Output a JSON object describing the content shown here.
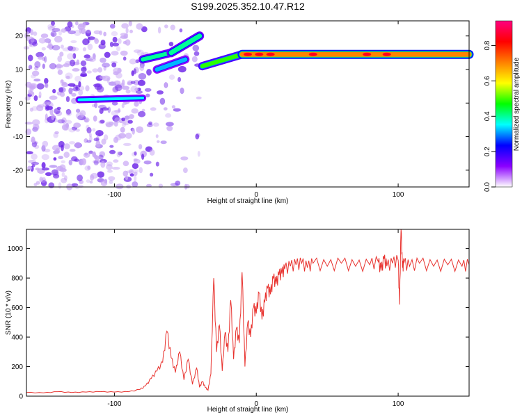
{
  "figure": {
    "title": "S199.2025.352.10.47.R12"
  },
  "chart_data": [
    {
      "type": "heatmap",
      "panel": "top",
      "xlabel": "Height of straight line (km)",
      "ylabel": "Frequency (Hz)",
      "xlim": [
        -162,
        150
      ],
      "ylim": [
        -25,
        24.5
      ],
      "xticks": [
        -100,
        0,
        100
      ],
      "yticks": [
        -20,
        -10,
        0,
        10,
        20
      ],
      "colorbar": {
        "label": "Normalized spectral amplitude",
        "range": [
          0,
          0.94
        ],
        "ticks": [
          0.0,
          0.2,
          0.4,
          0.6,
          0.8
        ],
        "colormap": [
          "#ffffff",
          "#8b00ff",
          "#0000ff",
          "#00ffff",
          "#00ff00",
          "#ffff00",
          "#ff8000",
          "#ff0000",
          "#ff0080"
        ]
      },
      "features": [
        {
          "name": "low-frequency band",
          "x": [
            -125,
            -80
          ],
          "freq_hz": 1.0,
          "amplitude": 0.35
        },
        {
          "name": "rising branch",
          "x": [
            -80,
            -40
          ],
          "freq_hz": [
            11,
            20
          ],
          "amplitude": 0.4
        },
        {
          "name": "steady band",
          "x": [
            -38,
            150
          ],
          "freq_hz": 14.5,
          "amplitude": 0.7
        },
        {
          "name": "diffuse noise",
          "x": [
            -162,
            -80
          ],
          "freq_hz": [
            -25,
            24
          ],
          "amplitude": 0.15
        }
      ]
    },
    {
      "type": "line",
      "panel": "bottom",
      "xlabel": "Height of straight line (km)",
      "ylabel": "SNR (10 * v/v)",
      "xlim": [
        -162,
        150
      ],
      "ylim": [
        0,
        1130
      ],
      "xticks": [
        -100,
        0,
        100
      ],
      "yticks": [
        0,
        200,
        400,
        600,
        800,
        1000
      ],
      "line_color": "#e8322e",
      "series": [
        {
          "x": [
            -162,
            -150,
            -140,
            -130,
            -120,
            -110,
            -100,
            -90,
            -82,
            -78,
            -74,
            -70,
            -66,
            -63,
            -60,
            -57,
            -54,
            -51,
            -48,
            -45,
            -42,
            -40,
            -38,
            -36,
            -34,
            -32,
            -30,
            -28,
            -26,
            -24,
            -22,
            -20,
            -18,
            -16,
            -14,
            -12,
            -10,
            -8,
            -6,
            -4,
            -2,
            0,
            2,
            4,
            6,
            8,
            10,
            12,
            14,
            16,
            18,
            20,
            24,
            28,
            32,
            36,
            40,
            50,
            60,
            70,
            80,
            86,
            88,
            90,
            92,
            96,
            100,
            101,
            102,
            103,
            104,
            108,
            115,
            125,
            135,
            145,
            150
          ],
          "y": [
            25,
            22,
            30,
            25,
            28,
            30,
            28,
            30,
            45,
            70,
            120,
            170,
            230,
            440,
            260,
            160,
            300,
            110,
            250,
            80,
            190,
            60,
            100,
            60,
            40,
            150,
            800,
            300,
            480,
            170,
            430,
            300,
            650,
            250,
            460,
            360,
            840,
            200,
            500,
            400,
            600,
            560,
            700,
            520,
            640,
            730,
            690,
            800,
            760,
            820,
            830,
            860,
            880,
            890,
            900,
            870,
            900,
            880,
            900,
            880,
            890,
            910,
            850,
            930,
            880,
            900,
            920,
            620,
            1130,
            870,
            900,
            880,
            900,
            880,
            890,
            880,
            890
          ]
        }
      ]
    }
  ]
}
